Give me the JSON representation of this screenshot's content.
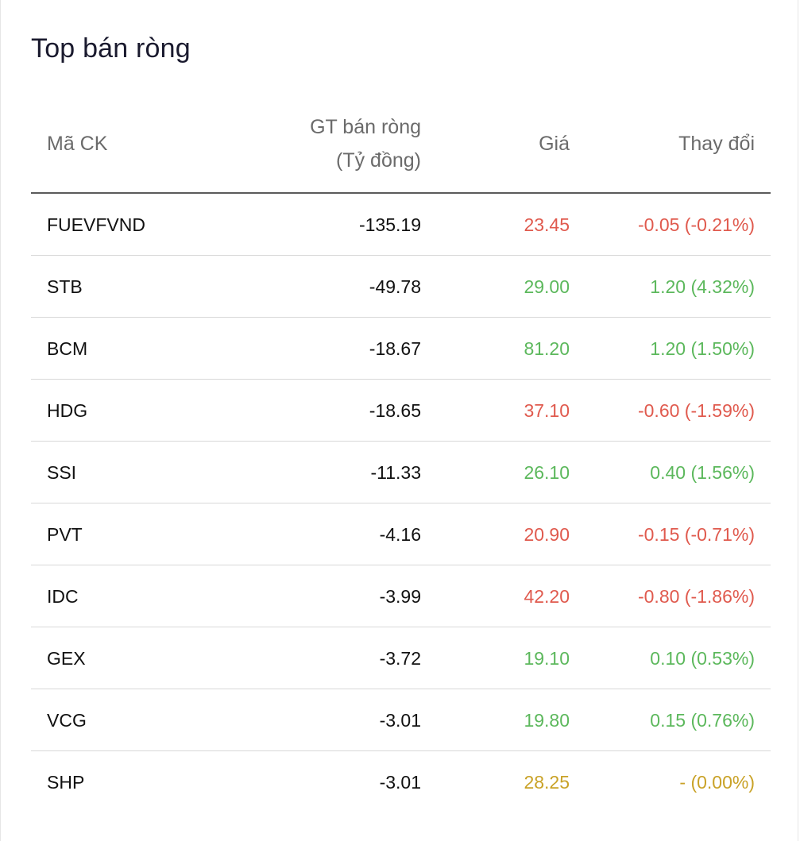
{
  "title": "Top bán ròng",
  "headers": {
    "symbol": "Mã CK",
    "value_line1": "GT bán ròng",
    "value_line2": "(Tỷ đồng)",
    "price": "Giá",
    "change": "Thay đổi"
  },
  "colors": {
    "down": "#e05a4e",
    "up": "#5cb85c",
    "unchanged": "#c9a227"
  },
  "rows": [
    {
      "symbol": "FUEVFVND",
      "value": "-135.19",
      "price": "23.45",
      "change": "-0.05 (-0.21%)",
      "trend": "down"
    },
    {
      "symbol": "STB",
      "value": "-49.78",
      "price": "29.00",
      "change": "1.20 (4.32%)",
      "trend": "up"
    },
    {
      "symbol": "BCM",
      "value": "-18.67",
      "price": "81.20",
      "change": "1.20 (1.50%)",
      "trend": "up"
    },
    {
      "symbol": "HDG",
      "value": "-18.65",
      "price": "37.10",
      "change": "-0.60 (-1.59%)",
      "trend": "down"
    },
    {
      "symbol": "SSI",
      "value": "-11.33",
      "price": "26.10",
      "change": "0.40 (1.56%)",
      "trend": "up"
    },
    {
      "symbol": "PVT",
      "value": "-4.16",
      "price": "20.90",
      "change": "-0.15 (-0.71%)",
      "trend": "down"
    },
    {
      "symbol": "IDC",
      "value": "-3.99",
      "price": "42.20",
      "change": "-0.80 (-1.86%)",
      "trend": "down"
    },
    {
      "symbol": "GEX",
      "value": "-3.72",
      "price": "19.10",
      "change": "0.10 (0.53%)",
      "trend": "up"
    },
    {
      "symbol": "VCG",
      "value": "-3.01",
      "price": "19.80",
      "change": "0.15 (0.76%)",
      "trend": "up"
    },
    {
      "symbol": "SHP",
      "value": "-3.01",
      "price": "28.25",
      "change": "- (0.00%)",
      "trend": "unchanged"
    }
  ]
}
